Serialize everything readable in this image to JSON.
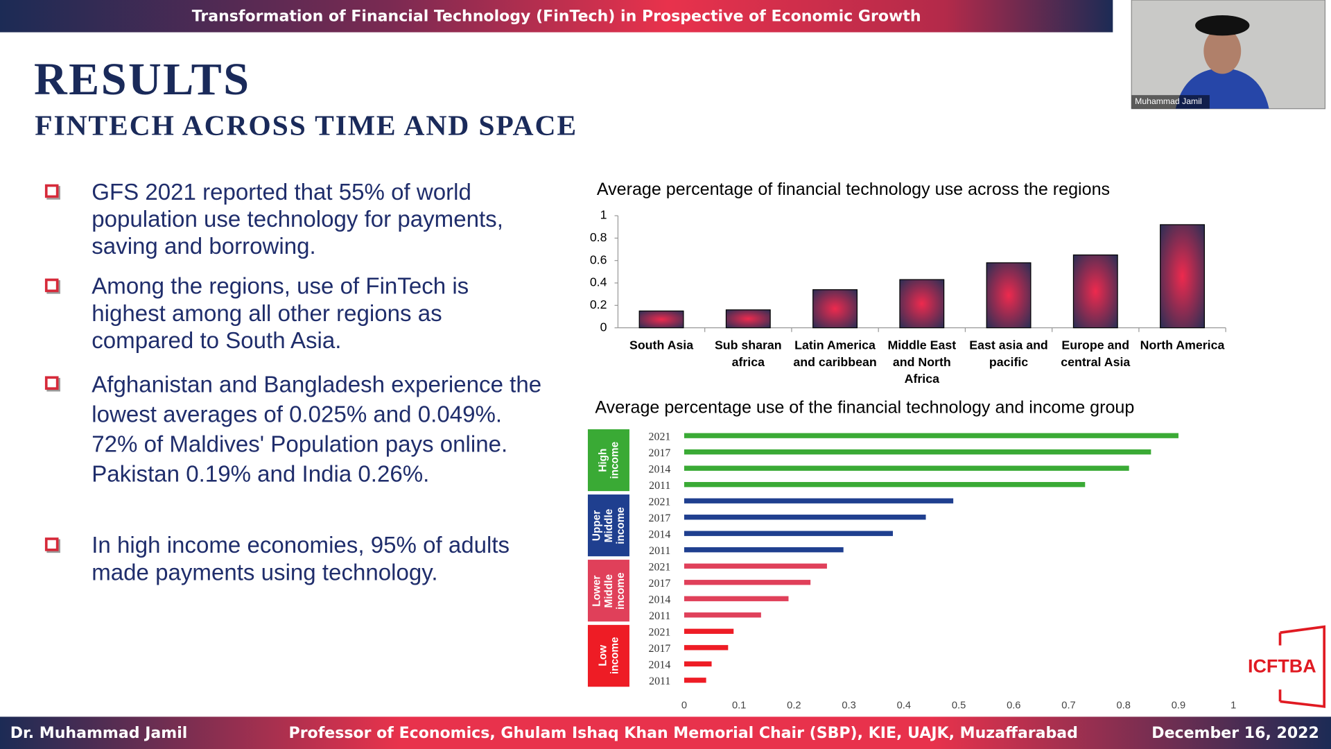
{
  "header": {
    "title": "Transformation of Financial Technology (FinTech) in Prospective of Economic Growth"
  },
  "slide": {
    "heading": "RESULTS",
    "subheading": "FINTECH ACROSS TIME AND SPACE",
    "bullets": [
      "GFS 2021 reported that 55% of world population use technology for payments, saving and borrowing.",
      "Among the regions, use of FinTech is highest among all other regions as compared to South Asia.",
      "Afghanistan and Bangladesh experience the lowest averages of 0.025% and 0.049%. 72% of Maldives' Population pays online. Pakistan 0.19% and India 0.26%.",
      "In high income economies, 95% of adults made payments using technology."
    ]
  },
  "video": {
    "name": "Muhammad Jamil"
  },
  "logo": "ICFTBA",
  "footer": {
    "left": "Dr. Muhammad Jamil",
    "center": "Professor of Economics, Ghulam Ishaq Khan Memorial Chair (SBP), KIE, UAJK, Muzaffarabad",
    "right": "December 16, 2022"
  },
  "chart_data": [
    {
      "type": "bar",
      "title": "Average percentage of financial technology use across the regions",
      "categories": [
        "South Asia",
        "Sub sharan africa",
        "Latin America and caribbean",
        "Middle East and North Africa",
        "East asia and pacific",
        "Europe and central Asia",
        "North America"
      ],
      "values": [
        0.15,
        0.16,
        0.34,
        0.43,
        0.58,
        0.65,
        0.92
      ],
      "color": "#ee2a4e",
      "ylim": [
        0,
        1
      ],
      "yticks": [
        0,
        0.2,
        0.4,
        0.6,
        0.8,
        1
      ],
      "grid": false
    },
    {
      "type": "barh",
      "title": "Average percentage use of the financial technology and income group",
      "categories": [
        "2021",
        "2017",
        "2014",
        "2011"
      ],
      "series": [
        {
          "name": "High income",
          "color": "#3aaa35",
          "values": [
            0.9,
            0.85,
            0.81,
            0.73
          ]
        },
        {
          "name": "Upper Middle income",
          "color": "#1f3f8f",
          "values": [
            0.49,
            0.44,
            0.38,
            0.29
          ]
        },
        {
          "name": "Lower Middle income",
          "color": "#e0405a",
          "values": [
            0.26,
            0.23,
            0.19,
            0.14
          ]
        },
        {
          "name": "Low income",
          "color": "#ee1c25",
          "values": [
            0.09,
            0.08,
            0.05,
            0.04
          ]
        }
      ],
      "xlim": [
        0,
        1
      ],
      "xticks": [
        0,
        0.1,
        0.2,
        0.3,
        0.4,
        0.5,
        0.6,
        0.7,
        0.8,
        0.9,
        1
      ],
      "grid": false
    }
  ]
}
